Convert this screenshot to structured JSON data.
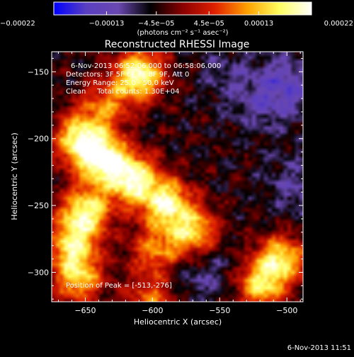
{
  "chart_data": {
    "type": "heatmap",
    "title": "Reconstructed RHESSI Image",
    "xlabel": "Heliocentric X (arcsec)",
    "ylabel": "Heliocentric Y (arcsec)",
    "xlim": [
      -675,
      -488
    ],
    "ylim": [
      -322,
      -135
    ],
    "x_ticks": [
      -650,
      -600,
      -550,
      -500
    ],
    "x_tick_labels": [
      "−650",
      "−600",
      "−550",
      "−500"
    ],
    "y_ticks": [
      -150,
      -200,
      -250,
      -300
    ],
    "y_tick_labels": [
      "−150",
      "−200",
      "−250",
      "−300"
    ],
    "grid": false,
    "colorbar": {
      "position": "top",
      "colormap": "RHESSI blue-white-red",
      "range": [
        -0.00022,
        0.00022
      ],
      "ticks": [
        -0.00022,
        -0.00013,
        -4.5e-05,
        4.5e-05,
        0.00013,
        0.00022
      ],
      "tick_labels": [
        "−0.00022",
        "−0.00013",
        "−4.5e−05",
        "4.5e−05",
        "0.00013",
        "0.00022"
      ],
      "unit_label": "(photons cm⁻² s⁻¹ asec⁻²)",
      "colors": [
        "#0000ff",
        "#5a3fc0",
        "#6a48b0",
        "#000000",
        "#8a0000",
        "#e02000",
        "#ffa000",
        "#ffff60",
        "#ffffff"
      ]
    },
    "annotations": [
      "6-Nov-2013 06:52:06.000 to 06:58:06.000",
      "Detectors: 3F 5F 6F 7F 8F 9F, Att 0",
      "Energy Range: 25.0 - 50.0 keV",
      "Clean     Total counts: 1.30E+04"
    ],
    "peak_annotation": "Position of Peak = [-513,-276]",
    "peak_position": [
      -513,
      -276
    ],
    "emission_sources": [
      {
        "x": -610,
        "y": -152,
        "intensity": 1.0
      },
      {
        "x": -655,
        "y": -200,
        "intensity": 0.85
      },
      {
        "x": -638,
        "y": -215,
        "intensity": 1.0
      },
      {
        "x": -615,
        "y": -230,
        "intensity": 1.0
      },
      {
        "x": -590,
        "y": -248,
        "intensity": 0.9
      },
      {
        "x": -570,
        "y": -270,
        "intensity": 0.8
      },
      {
        "x": -650,
        "y": -255,
        "intensity": 0.9
      },
      {
        "x": -660,
        "y": -280,
        "intensity": 0.75
      },
      {
        "x": -655,
        "y": -305,
        "intensity": 0.7
      },
      {
        "x": -598,
        "y": -285,
        "intensity": 0.6
      },
      {
        "x": -520,
        "y": -310,
        "intensity": 0.75
      },
      {
        "x": -505,
        "y": -290,
        "intensity": 0.8
      },
      {
        "x": -600,
        "y": -320,
        "intensity": 0.6
      },
      {
        "x": -635,
        "y": -175,
        "intensity": 0.55
      }
    ],
    "negative_regions": [
      {
        "x": -500,
        "y": -160,
        "intensity": 1.0
      },
      {
        "x": -520,
        "y": -175,
        "intensity": 0.6
      },
      {
        "x": -545,
        "y": -150,
        "intensity": 0.5
      },
      {
        "x": -495,
        "y": -235,
        "intensity": 0.7
      },
      {
        "x": -560,
        "y": -300,
        "intensity": 0.6
      },
      {
        "x": -590,
        "y": -305,
        "intensity": 0.4
      }
    ]
  },
  "footer": {
    "timestamp": "6-Nov-2013 11:51"
  }
}
